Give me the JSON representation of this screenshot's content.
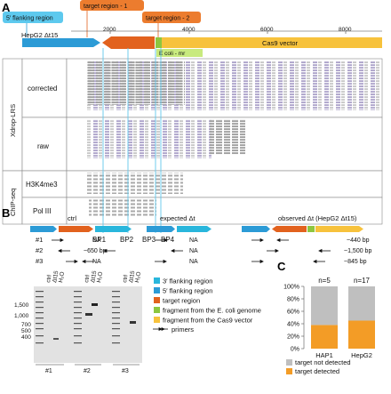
{
  "panel_a": {
    "label": "A",
    "callouts": {
      "flank5": "5′ flanking region",
      "target1": "target region - 1",
      "target2": "target region - 2",
      "ecoli": "E coli - mr",
      "cas9": "Cas9 vector"
    },
    "sample": "HepG2 Δt15",
    "scale_ticks": [
      "2000",
      "4000",
      "6000",
      "8000"
    ],
    "group_labels": {
      "xdrop": "Xdrop-LRS",
      "chip": "ChIP-seq"
    },
    "track_labels": [
      "corrected",
      "raw",
      "H3K4me3",
      "Pol III"
    ],
    "breakpoints": [
      "BP1",
      "BP2",
      "BP3",
      "BP4"
    ]
  },
  "panel_b": {
    "label": "B",
    "constructs": [
      "ctrl",
      "expected Δt",
      "observed Δt (HepG2 Δt15)"
    ],
    "rows": [
      {
        "id": "#1",
        "ctrl": "NA",
        "expected": "NA",
        "observed": "~440 bp"
      },
      {
        "id": "#2",
        "ctrl": "~650 bp",
        "expected": "NA",
        "observed": "~1,500 bp"
      },
      {
        "id": "#3",
        "ctrl": "NA",
        "expected": "NA",
        "observed": "~845 bp"
      }
    ],
    "ladder_marks": [
      "1,500",
      "1,000",
      "700",
      "500",
      "400"
    ],
    "gel_lane_labels": [
      "ctrl",
      "Δt15",
      "H₂O"
    ],
    "gel_ids": [
      "#1",
      "#2",
      "#3"
    ],
    "legend": [
      {
        "label": "3′ flanking region",
        "color": "#29b6dc"
      },
      {
        "label": "5′ flanking region",
        "color": "#2c9bd6"
      },
      {
        "label": "target region",
        "color": "#e2621e"
      },
      {
        "label": "fragment from the E. coli genome",
        "color": "#8dc63f"
      },
      {
        "label": "fragment from the Cas9 vector",
        "color": "#f7c23c"
      }
    ],
    "primers_label": "primers"
  },
  "panel_c": {
    "label": "C",
    "chart_data": {
      "type": "bar",
      "categories": [
        "HAP1",
        "HepG2"
      ],
      "annotations": [
        "n=5",
        "n=17"
      ],
      "series": [
        {
          "name": "target detected",
          "values": [
            38,
            45
          ],
          "color": "#f39c26"
        },
        {
          "name": "target not detected",
          "values": [
            62,
            55
          ],
          "color": "#bfbfbf"
        }
      ],
      "yticks": [
        "0%",
        "20%",
        "40%",
        "60%",
        "80%",
        "100%"
      ],
      "ylim": [
        0,
        100
      ],
      "legend_position": "bottom"
    }
  }
}
